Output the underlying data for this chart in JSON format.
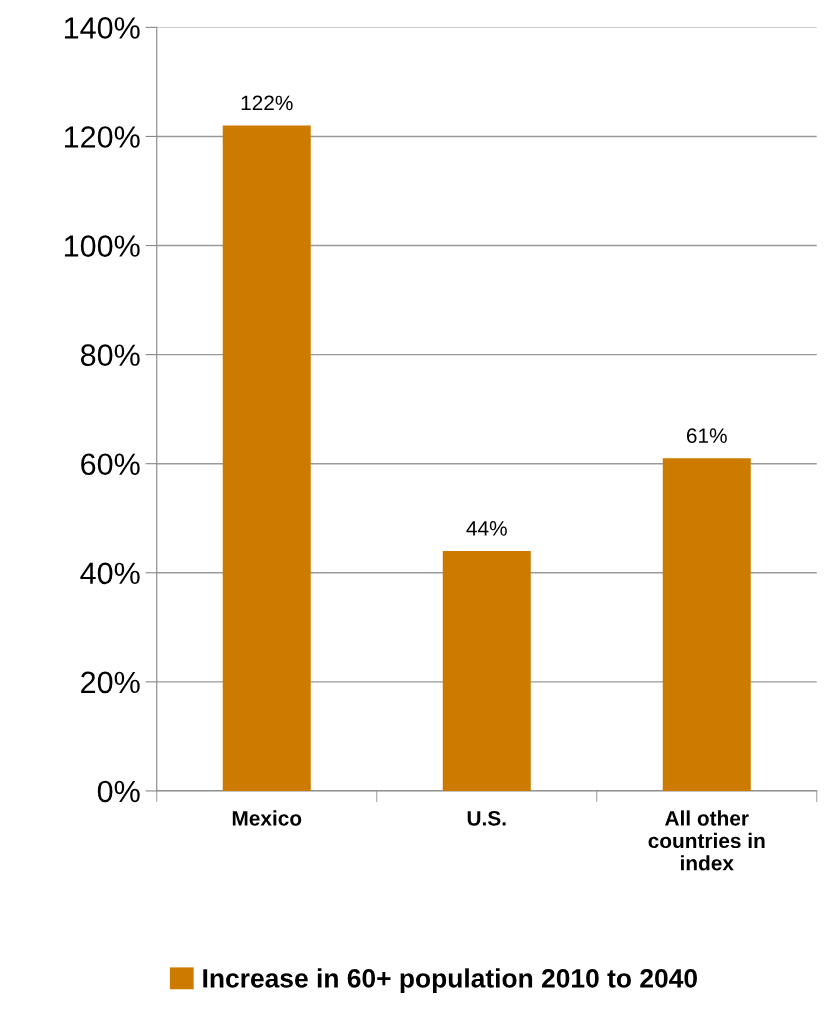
{
  "chart_data": {
    "type": "bar",
    "categories": [
      "Mexico",
      "U.S.",
      "All other\ncountries in\nindex"
    ],
    "series": [
      {
        "name": "Increase in 60+ population 2010 to 2040",
        "color": "#cc7a00",
        "values": [
          122,
          44,
          61
        ]
      }
    ],
    "value_labels": [
      "122%",
      "44%",
      "61%"
    ],
    "ylim": [
      0,
      140
    ],
    "yticks": [
      {
        "value": 0,
        "label": "0%"
      },
      {
        "value": 20,
        "label": "20%"
      },
      {
        "value": 40,
        "label": "40%"
      },
      {
        "value": 60,
        "label": "60%"
      },
      {
        "value": 80,
        "label": "80%"
      },
      {
        "value": 100,
        "label": "100%"
      },
      {
        "value": 120,
        "label": "120%"
      },
      {
        "value": 140,
        "label": "140%"
      }
    ],
    "grid": "y",
    "legend": "bottom"
  }
}
